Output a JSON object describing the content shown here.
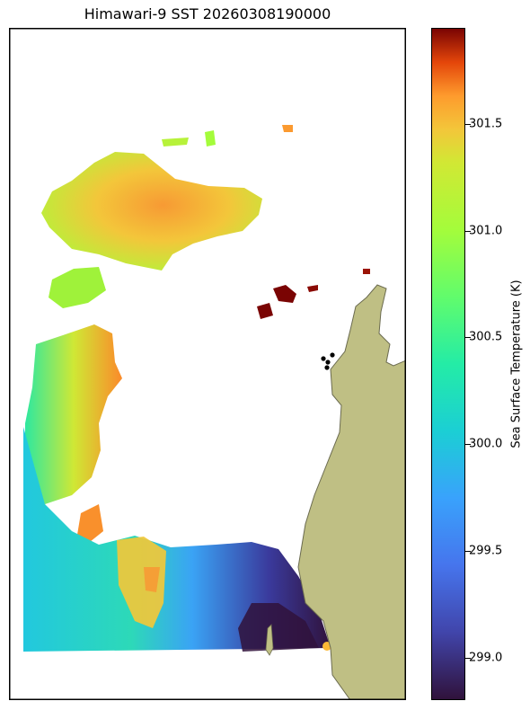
{
  "title": "Himawari-9 SST 20260308190000",
  "colorbar": {
    "label": "Sea Surface Temperature (K)",
    "min": 298.8,
    "max": 301.95,
    "ticks": [
      {
        "value": 299.0,
        "label": "299.0"
      },
      {
        "value": 299.5,
        "label": "299.5"
      },
      {
        "value": 300.0,
        "label": "300.0"
      },
      {
        "value": 300.5,
        "label": "300.5"
      },
      {
        "value": 301.0,
        "label": "301.0"
      },
      {
        "value": 301.5,
        "label": "301.5"
      }
    ],
    "colormap": "turbo"
  },
  "colors": {
    "land": "#bfbf84",
    "coastline": "#6b6b50",
    "background": "#ffffff",
    "markers": "#000000"
  }
}
